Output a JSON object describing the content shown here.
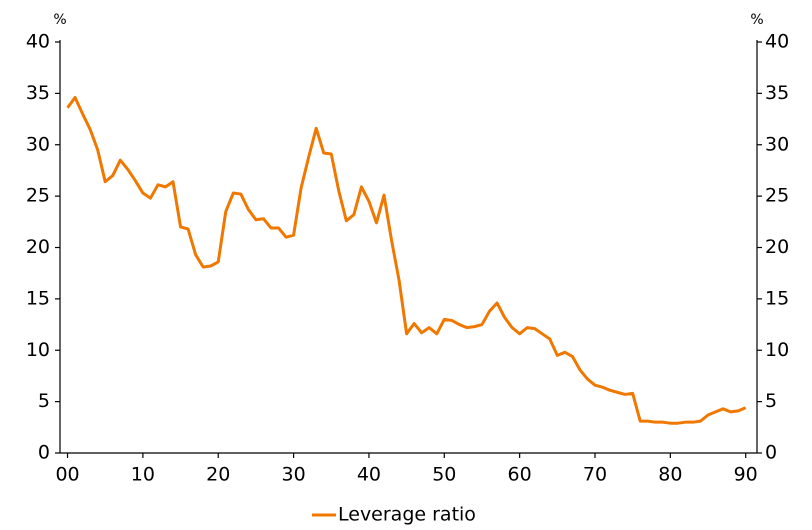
{
  "chart_data": {
    "type": "line",
    "ylabel": "%",
    "y2label": "%",
    "x": [
      0,
      1,
      2,
      3,
      4,
      5,
      6,
      7,
      8,
      9,
      10,
      11,
      12,
      13,
      14,
      15,
      16,
      17,
      18,
      19,
      20,
      21,
      22,
      23,
      24,
      25,
      26,
      27,
      28,
      29,
      30,
      31,
      32,
      33,
      34,
      35,
      36,
      37,
      38,
      39,
      40,
      41,
      42,
      43,
      44,
      45,
      46,
      47,
      48,
      49,
      50,
      51,
      52,
      53,
      54,
      55,
      56,
      57,
      58,
      59,
      60,
      61,
      62,
      63,
      64,
      65,
      66,
      67,
      68,
      69,
      70,
      71,
      72,
      73,
      74,
      75,
      76,
      77,
      78,
      79,
      80,
      81,
      82,
      83,
      84,
      85,
      86,
      87,
      88,
      89,
      90
    ],
    "series": [
      {
        "name": "Leverage ratio",
        "color": "#f07800",
        "values": [
          33.6,
          34.6,
          33,
          31.5,
          29.5,
          26.4,
          27,
          28.5,
          27.6,
          26.5,
          25.3,
          24.8,
          26.1,
          25.9,
          26.4,
          22,
          21.8,
          19.3,
          18.1,
          18.2,
          18.6,
          23.5,
          25.3,
          25.2,
          23.7,
          22.7,
          22.8,
          21.9,
          21.9,
          21,
          21.2,
          25.8,
          28.8,
          31.6,
          29.2,
          29.1,
          25.5,
          22.6,
          23.2,
          25.9,
          24.5,
          22.4,
          25.1,
          20.7,
          16.8,
          11.6,
          12.6,
          11.7,
          12.2,
          11.6,
          13,
          12.9,
          12.5,
          12.2,
          12.3,
          12.5,
          13.8,
          14.6,
          13.2,
          12.2,
          11.6,
          12.2,
          12.1,
          11.6,
          11.1,
          9.5,
          9.8,
          9.4,
          8.1,
          7.2,
          6.6,
          6.4,
          6.1,
          5.9,
          5.7,
          5.8,
          3.1,
          3.1,
          3.0,
          3.0,
          2.9,
          2.9,
          3.0,
          3.0,
          3.1,
          3.7,
          4.0,
          4.3,
          4.0,
          4.1,
          4.4
        ]
      }
    ],
    "xlim": [
      -1,
      91.5
    ],
    "xticks": [
      {
        "value": 0,
        "label": "00"
      },
      10,
      20,
      30,
      40,
      50,
      60,
      70,
      80,
      90
    ],
    "ylim": [
      0,
      40
    ],
    "yticks": [
      0,
      5,
      10,
      15,
      20,
      25,
      30,
      35,
      40
    ],
    "y2lim": [
      0,
      40
    ],
    "y2ticks": [
      0,
      5,
      10,
      15,
      20,
      25,
      30,
      35,
      40
    ]
  }
}
